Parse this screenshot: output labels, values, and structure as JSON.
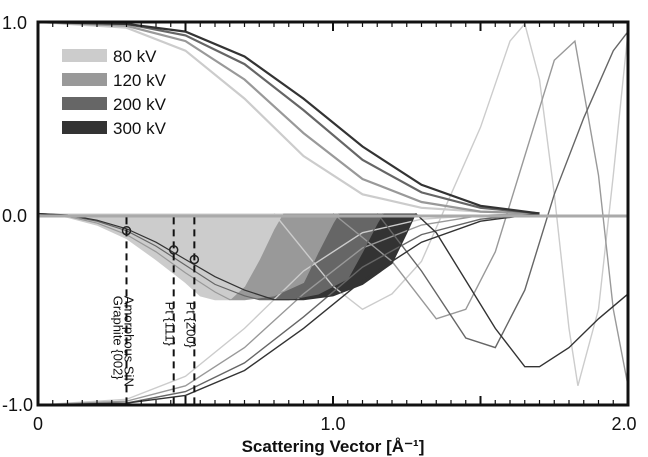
{
  "chart_data": {
    "type": "line",
    "xlabel": "Scattering Vector [Å⁻¹]",
    "xlim": [
      0,
      2.0
    ],
    "ylim": [
      -1.0,
      1.0
    ],
    "x_tick_labels": [
      "0",
      "1.0",
      "2.0"
    ],
    "x_tick_values": [
      0,
      1.0,
      2.0
    ],
    "y_tick_labels": [
      "1.0",
      "0.0",
      "-1.0"
    ],
    "y_tick_values": [
      1.0,
      0.0,
      -1.0
    ],
    "grid": false,
    "legend_position": "top-left",
    "series": [
      {
        "name": "80 kV",
        "color": "#cccccc",
        "envelope": [
          [
            0,
            1
          ],
          [
            0.3,
            0.97
          ],
          [
            0.5,
            0.85
          ],
          [
            0.7,
            0.6
          ],
          [
            0.9,
            0.3
          ],
          [
            1.1,
            0.1
          ],
          [
            1.3,
            0.03
          ],
          [
            1.5,
            0.01
          ],
          [
            1.7,
            0
          ]
        ],
        "fill_ctf": [
          [
            0,
            0
          ],
          [
            0.1,
            -0.02
          ],
          [
            0.2,
            -0.06
          ],
          [
            0.3,
            -0.13
          ],
          [
            0.4,
            -0.24
          ],
          [
            0.5,
            -0.36
          ],
          [
            0.55,
            -0.43
          ],
          [
            0.6,
            -0.45
          ],
          [
            0.65,
            -0.45
          ],
          [
            0.7,
            -0.38
          ],
          [
            0.75,
            -0.24
          ],
          [
            0.8,
            -0.08
          ],
          [
            0.83,
            0
          ]
        ],
        "oscillation": [
          [
            0.8,
            0
          ],
          [
            1.0,
            -0.38
          ],
          [
            1.1,
            -0.5
          ],
          [
            1.2,
            -0.42
          ],
          [
            1.3,
            -0.25
          ],
          [
            1.4,
            0.1
          ],
          [
            1.5,
            0.45
          ],
          [
            1.6,
            0.9
          ],
          [
            1.65,
            0.99
          ],
          [
            1.7,
            0.7
          ],
          [
            1.75,
            0.1
          ],
          [
            1.8,
            -0.6
          ],
          [
            1.83,
            -0.9
          ],
          [
            1.9,
            -0.5
          ],
          [
            1.95,
            0.2
          ],
          [
            2.0,
            0.95
          ]
        ]
      },
      {
        "name": "120 kV",
        "color": "#999999",
        "envelope": [
          [
            0,
            1
          ],
          [
            0.3,
            0.98
          ],
          [
            0.5,
            0.9
          ],
          [
            0.7,
            0.7
          ],
          [
            0.9,
            0.42
          ],
          [
            1.1,
            0.18
          ],
          [
            1.3,
            0.06
          ],
          [
            1.5,
            0.01
          ],
          [
            1.7,
            0
          ]
        ],
        "fill_ctf": [
          [
            0,
            0
          ],
          [
            0.1,
            -0.015
          ],
          [
            0.2,
            -0.05
          ],
          [
            0.3,
            -0.11
          ],
          [
            0.4,
            -0.2
          ],
          [
            0.5,
            -0.31
          ],
          [
            0.6,
            -0.41
          ],
          [
            0.65,
            -0.45
          ],
          [
            0.7,
            -0.45
          ],
          [
            0.8,
            -0.43
          ],
          [
            0.9,
            -0.36
          ],
          [
            0.95,
            -0.2
          ],
          [
            1.0,
            -0.05
          ],
          [
            1.02,
            0
          ]
        ],
        "oscillation": [
          [
            1.0,
            0
          ],
          [
            1.2,
            -0.25
          ],
          [
            1.35,
            -0.55
          ],
          [
            1.45,
            -0.5
          ],
          [
            1.55,
            -0.2
          ],
          [
            1.65,
            0.3
          ],
          [
            1.75,
            0.8
          ],
          [
            1.82,
            0.9
          ],
          [
            1.9,
            0.2
          ],
          [
            1.95,
            -0.5
          ],
          [
            2.0,
            -0.9
          ]
        ]
      },
      {
        "name": "200 kV",
        "color": "#666666",
        "envelope": [
          [
            0,
            1
          ],
          [
            0.3,
            0.99
          ],
          [
            0.5,
            0.93
          ],
          [
            0.7,
            0.78
          ],
          [
            0.9,
            0.54
          ],
          [
            1.1,
            0.28
          ],
          [
            1.3,
            0.11
          ],
          [
            1.5,
            0.03
          ],
          [
            1.7,
            0
          ]
        ],
        "fill_ctf": [
          [
            0,
            0
          ],
          [
            0.1,
            -0.01
          ],
          [
            0.2,
            -0.04
          ],
          [
            0.3,
            -0.09
          ],
          [
            0.4,
            -0.17
          ],
          [
            0.5,
            -0.27
          ],
          [
            0.6,
            -0.37
          ],
          [
            0.7,
            -0.43
          ],
          [
            0.75,
            -0.45
          ],
          [
            0.85,
            -0.45
          ],
          [
            0.95,
            -0.42
          ],
          [
            1.05,
            -0.34
          ],
          [
            1.1,
            -0.2
          ],
          [
            1.15,
            -0.05
          ],
          [
            1.17,
            0
          ]
        ],
        "oscillation": [
          [
            1.15,
            0
          ],
          [
            1.3,
            -0.3
          ],
          [
            1.45,
            -0.65
          ],
          [
            1.55,
            -0.7
          ],
          [
            1.65,
            -0.4
          ],
          [
            1.75,
            0.1
          ],
          [
            1.85,
            0.5
          ],
          [
            1.95,
            0.85
          ],
          [
            2.0,
            0.95
          ]
        ]
      },
      {
        "name": "300 kV",
        "color": "#333333",
        "envelope": [
          [
            0,
            1
          ],
          [
            0.3,
            0.99
          ],
          [
            0.5,
            0.95
          ],
          [
            0.7,
            0.82
          ],
          [
            0.9,
            0.6
          ],
          [
            1.1,
            0.35
          ],
          [
            1.3,
            0.15
          ],
          [
            1.5,
            0.04
          ],
          [
            1.7,
            0
          ]
        ],
        "fill_ctf": [
          [
            0,
            0
          ],
          [
            0.1,
            -0.008
          ],
          [
            0.2,
            -0.035
          ],
          [
            0.3,
            -0.08
          ],
          [
            0.4,
            -0.15
          ],
          [
            0.5,
            -0.24
          ],
          [
            0.6,
            -0.33
          ],
          [
            0.7,
            -0.4
          ],
          [
            0.8,
            -0.45
          ],
          [
            0.9,
            -0.45
          ],
          [
            1.0,
            -0.43
          ],
          [
            1.1,
            -0.37
          ],
          [
            1.2,
            -0.26
          ],
          [
            1.25,
            -0.1
          ],
          [
            1.28,
            0
          ]
        ],
        "oscillation": [
          [
            1.28,
            0
          ],
          [
            1.35,
            -0.1
          ],
          [
            1.45,
            -0.35
          ],
          [
            1.55,
            -0.6
          ],
          [
            1.65,
            -0.8
          ],
          [
            1.7,
            -0.8
          ],
          [
            1.8,
            -0.7
          ],
          [
            1.9,
            -0.55
          ],
          [
            2.0,
            -0.42
          ]
        ]
      }
    ],
    "annotations": [
      {
        "label": "Graphite {002}",
        "x": 0.3,
        "y": -0.09
      },
      {
        "label": "Amorphous SiN",
        "x": 0.3,
        "y": -0.09
      },
      {
        "label": "Pt {111}",
        "x": 0.46,
        "y": -0.19
      },
      {
        "label": "Pt {200}",
        "x": 0.53,
        "y": -0.24
      }
    ]
  },
  "colors": {
    "frame": "#111111",
    "zero_line": "#aaaaaa"
  }
}
